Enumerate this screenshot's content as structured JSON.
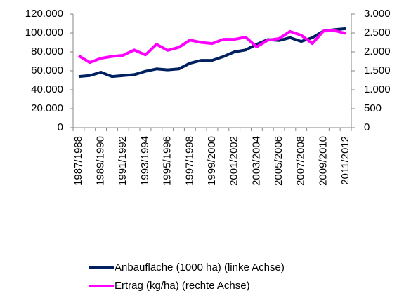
{
  "chart_data": {
    "type": "line",
    "categories": [
      "1987/1988",
      null,
      "1989/1990",
      null,
      "1991/1992",
      null,
      "1993/1994",
      null,
      "1995/1996",
      null,
      "1997/1998",
      null,
      "1999/2000",
      null,
      "2001/2002",
      null,
      "2003/2004",
      null,
      "2005/2006",
      null,
      "2007/2008",
      null,
      "2009/2010",
      null,
      "2011/2012"
    ],
    "series": [
      {
        "name": "Anbaufläche (1000 ha) (linke Achse)",
        "color": "#002060",
        "values": [
          54000,
          55000,
          58500,
          54000,
          55000,
          56000,
          59500,
          62000,
          61000,
          62000,
          68000,
          71000,
          71000,
          75000,
          80000,
          82000,
          88000,
          93000,
          92000,
          95000,
          91000,
          95000,
          102000,
          103500,
          104500
        ]
      },
      {
        "name": "Ertrag (kg/ha) (rechte Achse)",
        "color": "#ff00ff",
        "axis": "y2",
        "values": [
          1900,
          1720,
          1830,
          1880,
          1910,
          2050,
          1920,
          2200,
          2040,
          2120,
          2310,
          2250,
          2220,
          2330,
          2330,
          2390,
          2130,
          2310,
          2350,
          2540,
          2440,
          2220,
          2550,
          2560,
          2490
        ]
      }
    ],
    "ylim": [
      0,
      120000
    ],
    "yticks": [
      0,
      {
        "value": 20000,
        "label": "20.000"
      },
      {
        "value": 40000,
        "label": "40.000"
      },
      {
        "value": 60000,
        "label": "60.000"
      },
      {
        "value": 80000,
        "label": "80.000"
      },
      {
        "value": 100000,
        "label": "100.000"
      },
      {
        "value": 120000,
        "label": "120.000"
      }
    ],
    "y2lim": [
      0,
      3000
    ],
    "y2ticks": [
      0,
      500,
      {
        "value": 1000,
        "label": "1.000"
      },
      {
        "value": 1500,
        "label": "1.500"
      },
      {
        "value": 2000,
        "label": "2.000"
      },
      {
        "value": 2500,
        "label": "2.500"
      },
      {
        "value": 3000,
        "label": "3.000"
      }
    ],
    "legend": "bottom"
  }
}
